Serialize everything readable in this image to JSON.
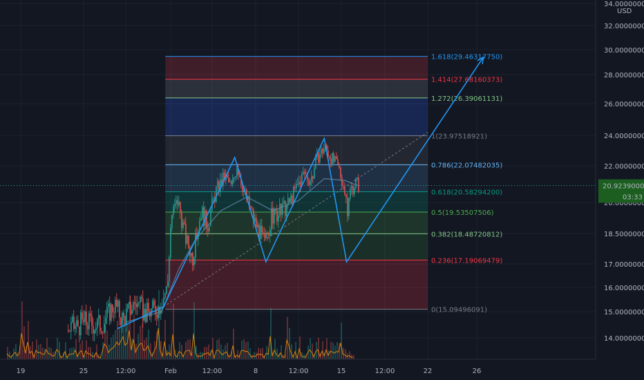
{
  "chart_data": {
    "type": "candlestick",
    "currency": "USD",
    "current_price": {
      "label": "20.92390000",
      "value": 20.9239,
      "countdown": "03:33",
      "color": "#1b5e20"
    },
    "y_axis": {
      "ticks": [
        {
          "value": 34,
          "label": "34.00000000"
        },
        {
          "value": 32,
          "label": "32.00000000"
        },
        {
          "value": 30,
          "label": "30.00000000"
        },
        {
          "value": 28,
          "label": "28.00000000"
        },
        {
          "value": 26,
          "label": "26.00000000"
        },
        {
          "value": 24,
          "label": "24.00000000"
        },
        {
          "value": 22,
          "label": "22.00000000"
        },
        {
          "value": 20,
          "label": "20.00000000"
        },
        {
          "value": 18.5,
          "label": "18.50000000"
        },
        {
          "value": 17,
          "label": "17.00000000"
        },
        {
          "value": 16,
          "label": "16.00000000"
        },
        {
          "value": 15,
          "label": "15.00000000"
        },
        {
          "value": 14,
          "label": "14.00000000"
        }
      ]
    },
    "x_axis": {
      "ticks": [
        {
          "day": 19,
          "label": "19"
        },
        {
          "day": 25,
          "label": "25"
        },
        {
          "day": 27.5,
          "label": "12:00"
        },
        {
          "day": 30,
          "label": "Feb"
        },
        {
          "day": 32.5,
          "label": "12:00"
        },
        {
          "day": 35,
          "label": "8"
        },
        {
          "day": 37.5,
          "label": "12:00"
        },
        {
          "day": 40,
          "label": "15"
        },
        {
          "day": 42.5,
          "label": "12:00"
        },
        {
          "day": 45,
          "label": "22"
        },
        {
          "day": 48,
          "label": "26"
        }
      ]
    },
    "fibonacci": {
      "start_day": 29.7,
      "end_day": 45,
      "levels": [
        {
          "ratio": "0",
          "price": 15.09496091,
          "label": "0(15.09496091)",
          "color": "#787b86"
        },
        {
          "ratio": "0.236",
          "price": 17.19069479,
          "label": "0.236(17.19069479)",
          "color": "#f23645",
          "fill": "rgba(242,54,69,0.22)"
        },
        {
          "ratio": "0.382",
          "price": 18.48720812,
          "label": "0.382(18.48720812)",
          "color": "#81c784",
          "fill": "rgba(76,175,80,0.16)"
        },
        {
          "ratio": "0.5",
          "price": 19.53507506,
          "label": "0.5(19.53507506)",
          "color": "#4caf50",
          "fill": "rgba(76,175,80,0.20)"
        },
        {
          "ratio": "0.618",
          "price": 20.582942,
          "label": "0.618(20.58294200)",
          "color": "#089981",
          "fill": "rgba(8,153,129,0.22)"
        },
        {
          "ratio": "0.786",
          "price": 22.07482035,
          "label": "0.786(22.07482035)",
          "color": "#64b5f6",
          "fill": "rgba(100,181,246,0.16)"
        },
        {
          "ratio": "1",
          "price": 23.97518921,
          "label": "1(23.97518921)",
          "color": "#787b86",
          "fill": "rgba(120,123,134,0.16)"
        },
        {
          "ratio": "1.272",
          "price": 26.39061131,
          "label": "1.272(26.39061131)",
          "color": "#81c784",
          "fill": "rgba(41,98,255,0.22)"
        },
        {
          "ratio": "1.414",
          "price": 27.68160373,
          "label": "1.414(27.68160373)",
          "color": "#f23645",
          "fill": "rgba(120,123,134,0.25)"
        },
        {
          "ratio": "1.618",
          "price": 29.4631775,
          "label": "1.618(29.46317750)",
          "color": "#2196f3",
          "fill": "rgba(242,54,69,0.20)",
          "fill_top": "rgba(8,153,129,0.30)"
        }
      ]
    },
    "pattern_line": {
      "color": "#2196f3",
      "points": [
        {
          "day": 27.0,
          "price": 14.35
        },
        {
          "day": 29.6,
          "price": 15.2
        },
        {
          "day": 33.8,
          "price": 22.55
        },
        {
          "day": 35.6,
          "price": 17.1
        },
        {
          "day": 39.0,
          "price": 23.8
        },
        {
          "day": 40.3,
          "price": 17.1
        },
        {
          "day": 48.4,
          "price": 29.4
        }
      ]
    },
    "trend_dashed": {
      "from": {
        "day": 29.6,
        "price": 15.2
      },
      "to": {
        "day": 45.0,
        "price": 24.2
      },
      "color": "#787b86"
    },
    "price_path": [
      {
        "day": 23.5,
        "price": 14.3
      },
      {
        "day": 25.0,
        "price": 14.6
      },
      {
        "day": 26.0,
        "price": 14.5
      },
      {
        "day": 26.8,
        "price": 15.3
      },
      {
        "day": 27.3,
        "price": 14.7
      },
      {
        "day": 28.0,
        "price": 15.4
      },
      {
        "day": 28.6,
        "price": 14.9
      },
      {
        "day": 29.3,
        "price": 15.2
      },
      {
        "day": 29.8,
        "price": 16.0
      },
      {
        "day": 30.0,
        "price": 19.3
      },
      {
        "day": 30.4,
        "price": 20.1
      },
      {
        "day": 30.9,
        "price": 18.2
      },
      {
        "day": 31.3,
        "price": 17.3
      },
      {
        "day": 31.8,
        "price": 19.6
      },
      {
        "day": 32.2,
        "price": 18.9
      },
      {
        "day": 32.7,
        "price": 20.6
      },
      {
        "day": 33.2,
        "price": 21.4
      },
      {
        "day": 33.6,
        "price": 20.8
      },
      {
        "day": 33.9,
        "price": 22.1
      },
      {
        "day": 34.4,
        "price": 20.3
      },
      {
        "day": 34.9,
        "price": 19.1
      },
      {
        "day": 35.5,
        "price": 18.0
      },
      {
        "day": 35.9,
        "price": 19.3
      },
      {
        "day": 36.4,
        "price": 19.5
      },
      {
        "day": 36.9,
        "price": 19.9
      },
      {
        "day": 37.3,
        "price": 20.7
      },
      {
        "day": 37.8,
        "price": 21.6
      },
      {
        "day": 38.2,
        "price": 21.2
      },
      {
        "day": 38.6,
        "price": 22.6
      },
      {
        "day": 39.0,
        "price": 23.2
      },
      {
        "day": 39.4,
        "price": 22.5
      },
      {
        "day": 39.8,
        "price": 21.9
      },
      {
        "day": 40.1,
        "price": 21.0
      },
      {
        "day": 40.3,
        "price": 19.4
      },
      {
        "day": 40.5,
        "price": 20.7
      },
      {
        "day": 40.8,
        "price": 21.1
      },
      {
        "day": 41.0,
        "price": 20.9
      }
    ],
    "moving_average": [
      {
        "day": 27.5,
        "price": 14.6
      },
      {
        "day": 29.5,
        "price": 15.0
      },
      {
        "day": 30.5,
        "price": 16.8
      },
      {
        "day": 31.5,
        "price": 18.2
      },
      {
        "day": 33.0,
        "price": 19.6
      },
      {
        "day": 34.5,
        "price": 20.3
      },
      {
        "day": 36.0,
        "price": 19.6
      },
      {
        "day": 37.5,
        "price": 20.1
      },
      {
        "day": 39.0,
        "price": 21.3
      },
      {
        "day": 40.2,
        "price": 21.2
      },
      {
        "day": 41.0,
        "price": 20.9
      }
    ]
  }
}
